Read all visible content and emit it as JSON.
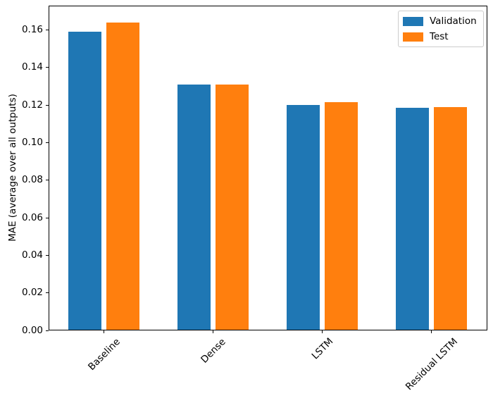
{
  "figure": {
    "background": "#ffffff",
    "axis_color": "#000000",
    "legend_border_color": "#cccccc"
  },
  "chart_data": {
    "type": "bar",
    "title": "",
    "xlabel": "",
    "ylabel": "MAE (average over all outputs)",
    "categories": [
      "Baseline",
      "Dense",
      "LSTM",
      "Residual LSTM"
    ],
    "series": [
      {
        "name": "Validation",
        "color": "#1f77b4",
        "values": [
          0.159,
          0.131,
          0.12,
          0.1185
        ]
      },
      {
        "name": "Test",
        "color": "#ff7f0e",
        "values": [
          0.164,
          0.131,
          0.1215,
          0.119
        ]
      }
    ],
    "ylim": [
      0,
      0.1729
    ],
    "yticks": [
      0,
      0.02,
      0.04,
      0.06,
      0.08,
      0.1,
      0.12,
      0.14,
      0.16
    ],
    "ytick_labels": [
      "0.00",
      "0.02",
      "0.04",
      "0.06",
      "0.08",
      "0.10",
      "0.12",
      "0.14",
      "0.16"
    ],
    "xtick_rotation_deg": 45,
    "grid": false,
    "legend": {
      "position": "upper right",
      "entries": [
        "Validation",
        "Test"
      ]
    }
  }
}
